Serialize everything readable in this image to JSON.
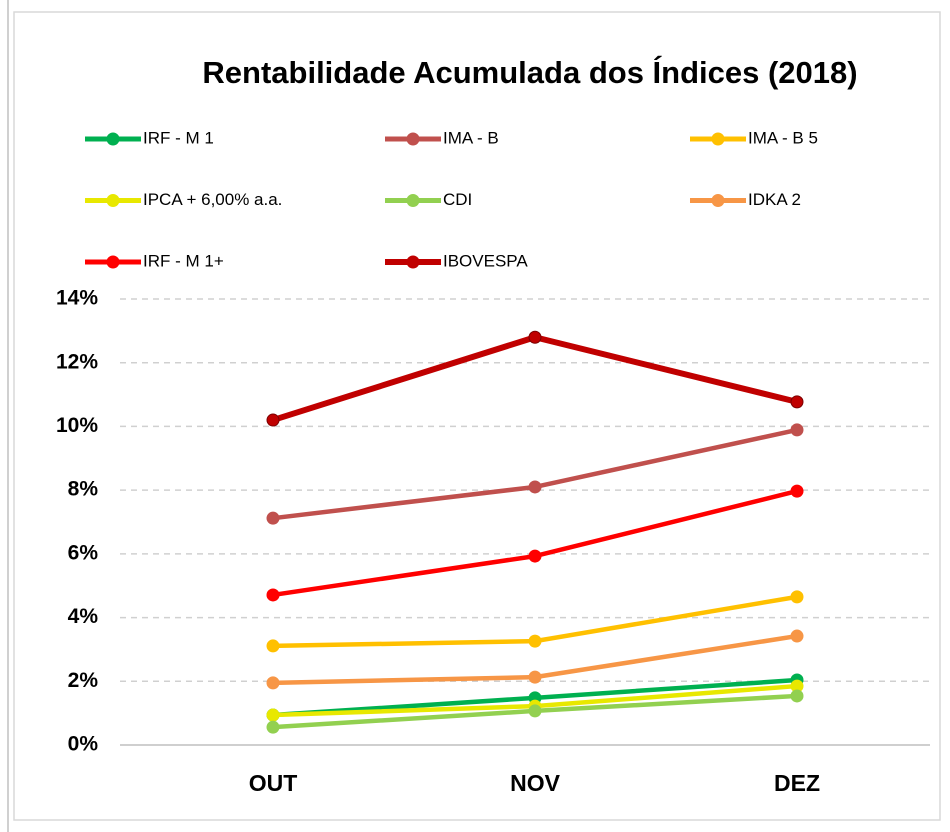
{
  "chart_data": {
    "type": "line",
    "title": "Rentabilidade Acumulada dos Índices (2018)",
    "categories": [
      "OUT",
      "NOV",
      "DEZ"
    ],
    "series": [
      {
        "name": "IRF - M 1",
        "color": "#00b050",
        "values": [
          0.94,
          1.48,
          2.04
        ]
      },
      {
        "name": "IMA - B",
        "color": "#c0504d",
        "values": [
          7.12,
          8.1,
          9.89
        ]
      },
      {
        "name": "IMA - B 5",
        "color": "#ffc000",
        "values": [
          3.11,
          3.26,
          4.65
        ]
      },
      {
        "name": "IPCA + 6,00% a.a.",
        "color": "#e8e800",
        "values": [
          0.94,
          1.22,
          1.85
        ]
      },
      {
        "name": "CDI",
        "color": "#92d050",
        "values": [
          0.56,
          1.07,
          1.54
        ]
      },
      {
        "name": "IDKA 2",
        "color": "#f79646",
        "values": [
          1.95,
          2.13,
          3.42
        ]
      },
      {
        "name": "IRF - M 1+",
        "color": "#ff0000",
        "values": [
          4.71,
          5.93,
          7.97
        ]
      },
      {
        "name": "IBOVESPA",
        "color": "#c00000",
        "values": [
          10.2,
          12.8,
          10.77
        ]
      }
    ],
    "ylim": [
      0,
      14
    ],
    "yticks": [
      {
        "value": 0,
        "label": "0%"
      },
      {
        "value": 2,
        "label": "2%"
      },
      {
        "value": 4,
        "label": "4%"
      },
      {
        "value": 6,
        "label": "6%"
      },
      {
        "value": 8,
        "label": "8%"
      },
      {
        "value": 10,
        "label": "10%"
      },
      {
        "value": 12,
        "label": "12%"
      },
      {
        "value": 14,
        "label": "14%"
      }
    ],
    "grid": true,
    "legend": "top"
  }
}
